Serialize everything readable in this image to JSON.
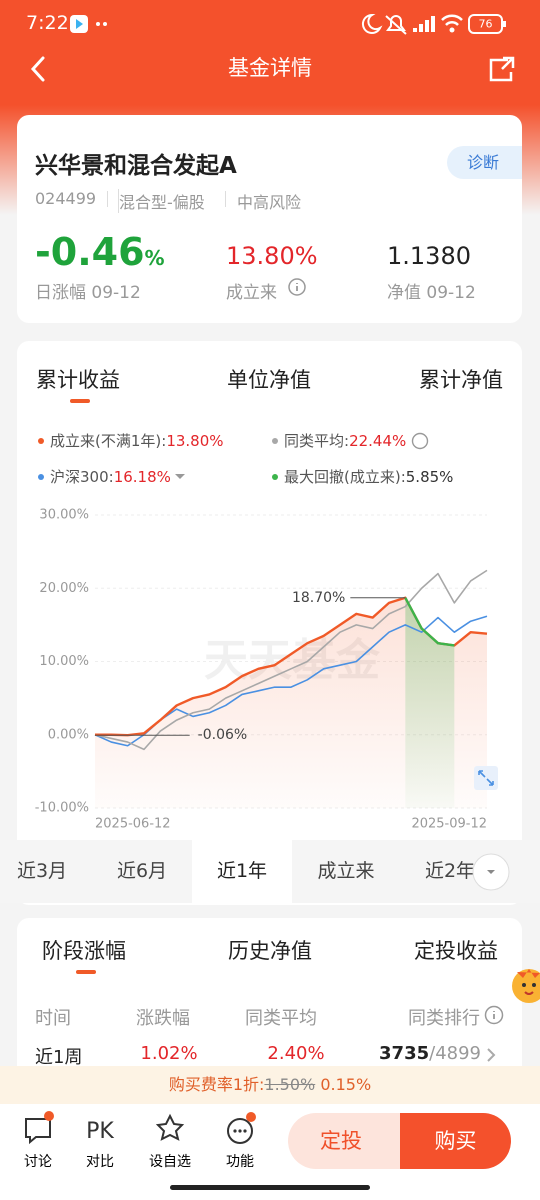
{
  "status_bar": {
    "time": "7:22",
    "battery": "76"
  },
  "header": {
    "title": "基金详情"
  },
  "fund": {
    "name": "兴华景和混合发起A",
    "tag": "诊断",
    "code": "024499",
    "category": "混合型-偏股",
    "risk": "中高风险",
    "daily_change": "-0.46",
    "daily_change_unit": "%",
    "daily_change_label": "日涨幅 09-12",
    "since_inception": "13.80%",
    "since_inception_label": "成立来",
    "nav": "1.1380",
    "nav_label": "净值 09-12"
  },
  "chart_tabs": [
    "累计收益",
    "单位净值",
    "累计净值"
  ],
  "chart": {
    "type": "line",
    "categories": [
      "2025-06-12",
      null,
      null,
      null,
      null,
      null,
      null,
      null,
      null,
      null,
      null,
      null,
      null,
      null,
      null,
      null,
      null,
      null,
      null,
      null,
      null,
      null,
      null,
      null,
      "2025-09-12"
    ],
    "ylim": [
      -10,
      30
    ],
    "yticks": [
      {
        "value": 30,
        "label": "30.00%"
      },
      {
        "value": 20,
        "label": "20.00%"
      },
      {
        "value": 10,
        "label": "10.00%"
      },
      {
        "value": 0,
        "label": "0.00%"
      },
      {
        "value": -10,
        "label": "-10.00%"
      }
    ],
    "series": [
      {
        "name": "成立来(不满1年):",
        "return": "13.80%",
        "color": "#f05a28",
        "values": [
          0,
          0,
          -0.06,
          0.2,
          2,
          4,
          5,
          5.5,
          6.5,
          8,
          9,
          9.5,
          11,
          12.5,
          13.5,
          15,
          16.5,
          16,
          18,
          18.7,
          14.5,
          12.5,
          12.2,
          14,
          13.8
        ]
      },
      {
        "name": "同类平均:",
        "return": "22.44%",
        "color": "#a8a8a8",
        "values": [
          0,
          -0.5,
          -1,
          -2,
          0.5,
          2,
          3,
          3.5,
          5,
          6,
          7,
          8,
          9,
          10,
          12,
          14,
          15,
          14.5,
          16.5,
          17.5,
          20,
          22,
          18,
          21,
          22.44
        ]
      },
      {
        "name": "沪深300:",
        "return": "16.18%",
        "color": "#4a90e2",
        "values": [
          0,
          -1,
          -1.5,
          0,
          2,
          3.5,
          2.5,
          3,
          4,
          5.5,
          6,
          6.5,
          6.5,
          7.5,
          9,
          9.5,
          10,
          12,
          14,
          15,
          14,
          16,
          14,
          15.5,
          16.18
        ]
      }
    ],
    "drawdown": {
      "name": "最大回撤(成立来):",
      "value": "5.85%",
      "color": "#3cb44b"
    },
    "annotations": [
      {
        "value": 18.7,
        "label": "18.70%"
      },
      {
        "value": -0.06,
        "label": "-0.06%"
      }
    ],
    "watermark": "天天基金"
  },
  "periods": [
    "近3月",
    "近6月",
    "近1年",
    "成立来",
    "近2年"
  ],
  "performance": {
    "tabs": [
      "阶段涨幅",
      "历史净值",
      "定投收益"
    ],
    "columns": [
      "时间",
      "涨跌幅",
      "同类平均",
      "同类排行"
    ],
    "rows": [
      {
        "period": "近1周",
        "change": "1.02%",
        "peer_avg": "2.40%",
        "rank": "3735",
        "rank_of": "/4899"
      }
    ]
  },
  "fee_banner": {
    "text": "购买费率1折:",
    "old": "1.50%",
    "new": "0.15%"
  },
  "bottom_bar": {
    "items": [
      "讨论",
      "对比",
      "设自选",
      "功能"
    ],
    "pk": "PK",
    "invest": "定投",
    "buy": "购买"
  }
}
